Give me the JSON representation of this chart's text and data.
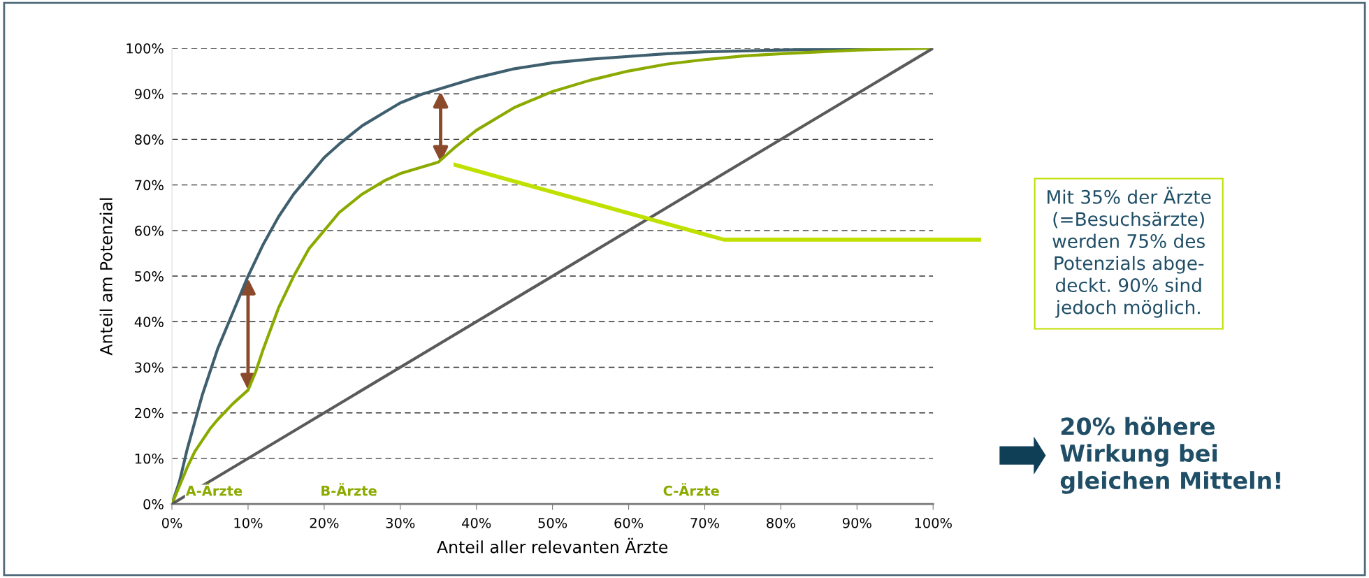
{
  "chart_data": {
    "type": "line",
    "xlabel": "Anteil aller relevanten Ärzte",
    "ylabel": "Anteil am Potenzial",
    "xlim": [
      0,
      100
    ],
    "ylim": [
      0,
      100
    ],
    "xticks": [
      {
        "value": 0,
        "label": "0%"
      },
      {
        "value": 10,
        "label": "10%"
      },
      {
        "value": 20,
        "label": "20%"
      },
      {
        "value": 30,
        "label": "30%"
      },
      {
        "value": 40,
        "label": "40%"
      },
      {
        "value": 50,
        "label": "50%"
      },
      {
        "value": 60,
        "label": "60%"
      },
      {
        "value": 70,
        "label": "70%"
      },
      {
        "value": 80,
        "label": "80%"
      },
      {
        "value": 90,
        "label": "90%"
      },
      {
        "value": 100,
        "label": "100%"
      }
    ],
    "yticks": [
      {
        "value": 0,
        "label": "0%"
      },
      {
        "value": 10,
        "label": "10%"
      },
      {
        "value": 20,
        "label": "20%"
      },
      {
        "value": 30,
        "label": "30%"
      },
      {
        "value": 40,
        "label": "40%"
      },
      {
        "value": 50,
        "label": "50%"
      },
      {
        "value": 60,
        "label": "60%"
      },
      {
        "value": 70,
        "label": "70%"
      },
      {
        "value": 80,
        "label": "80%"
      },
      {
        "value": 90,
        "label": "90%"
      },
      {
        "value": 100,
        "label": "100%"
      }
    ],
    "grid": "y",
    "marker": "none",
    "line_style": "solid",
    "series": [
      {
        "color": "#3f5f6e",
        "x": [
          0,
          1,
          2,
          3,
          4,
          5,
          6,
          8,
          10,
          12,
          14,
          16,
          18,
          20,
          22,
          25,
          28,
          30,
          33,
          35,
          40,
          45,
          50,
          55,
          60,
          65,
          70,
          80,
          90,
          93,
          100
        ],
        "values": [
          0,
          5,
          12,
          18,
          24,
          29,
          34,
          42,
          50,
          57,
          63,
          68,
          72,
          76,
          79,
          83,
          86,
          88,
          90,
          91,
          93.5,
          95.5,
          96.8,
          97.6,
          98.2,
          98.8,
          99.2,
          99.6,
          99.9,
          100,
          100
        ]
      },
      {
        "color": "#8aaa00",
        "x": [
          0,
          1,
          2,
          3,
          4,
          5,
          6,
          8,
          10,
          11,
          12,
          14,
          16,
          18,
          20,
          22,
          25,
          28,
          30,
          33,
          35,
          37,
          40,
          45,
          50,
          55,
          60,
          65,
          70,
          75,
          80,
          90,
          100
        ],
        "values": [
          0,
          4,
          8,
          11.5,
          14,
          16.5,
          18.5,
          22,
          25,
          29,
          34,
          43,
          50,
          56,
          60,
          64,
          68,
          71,
          72.5,
          74,
          75,
          78,
          82,
          87,
          90.5,
          93,
          95,
          96.5,
          97.5,
          98.3,
          98.8,
          99.6,
          100
        ]
      },
      {
        "color": "#5a5a5a",
        "x": [
          0,
          100
        ],
        "values": [
          0,
          100
        ]
      }
    ],
    "annotations": [
      "A-Ärzte",
      "B-Ärzte",
      "C-Ärzte",
      "Mit 35% der Ärzte (=Besuchsärzte) werden 75% des Potenzials abge- deckt. 90% sind jedoch möglich.",
      "20% höhere Wirkung bei gleichen Mitteln!"
    ]
  }
}
